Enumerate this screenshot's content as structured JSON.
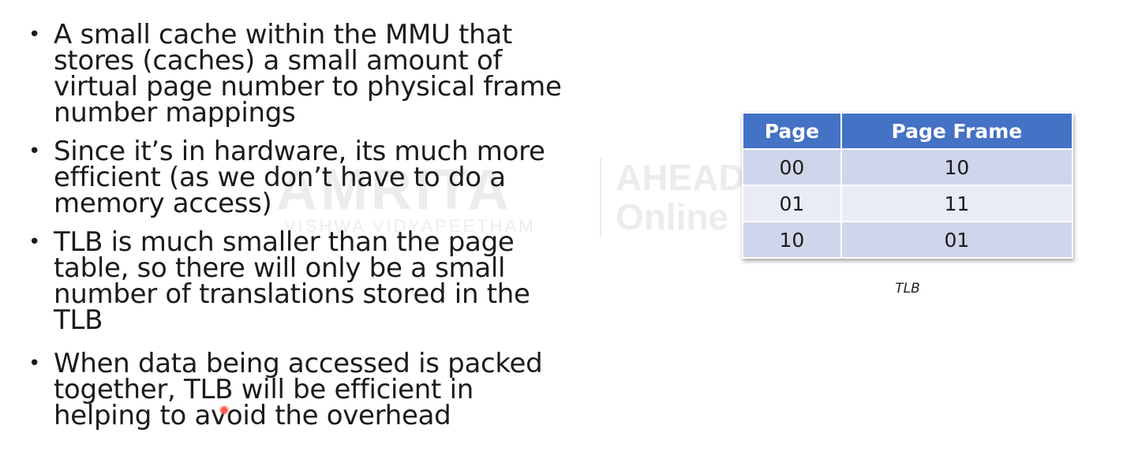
{
  "bullets": [
    "A small cache within the MMU that stores (caches) a small amount of virtual page number to physical frame number mappings",
    "Since it’s in hardware, its much more efficient (as we don’t have to do a memory access)",
    "TLB is much smaller than the page table, so there will only be a small number of translations stored in the TLB",
    "When data being accessed is packed together, TLB will be efficient in helping to avoid the overhead"
  ],
  "bullet_symbol": "•",
  "table": {
    "headers": [
      "Page",
      "Page Frame"
    ],
    "rows": [
      [
        "00",
        "10"
      ],
      [
        "01",
        "11"
      ],
      [
        "10",
        "01"
      ]
    ],
    "caption": "TLB",
    "header_color": "#4472c4",
    "row_colors": [
      "#cfd5ea",
      "#e9ebf5"
    ]
  },
  "watermark": {
    "main": "AMRITA",
    "sub": "VISHWA VIDYAPEETHAM",
    "right_line1": "AHEAD",
    "right_line2": "Online"
  }
}
